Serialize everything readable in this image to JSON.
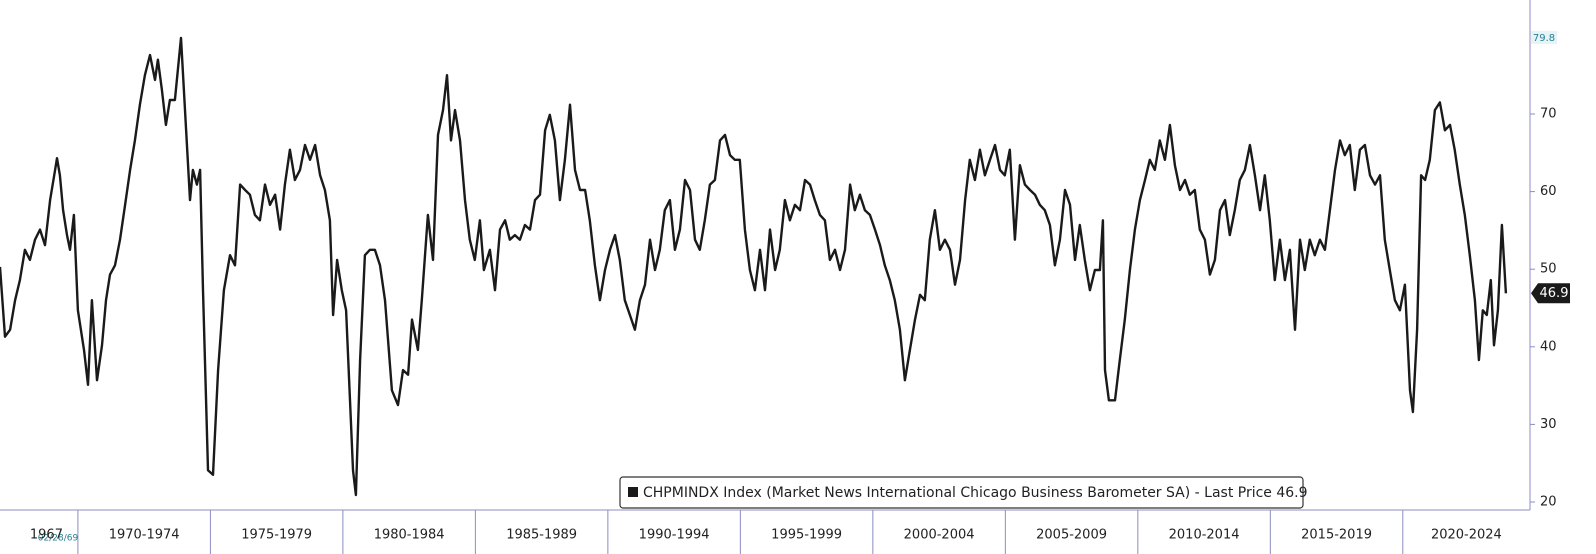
{
  "chart_data": {
    "type": "line",
    "legend_text": "CHPMINDX Index (Market News International Chicago Business Barometer SA) - Last Price 46.9",
    "cursor_date": "02/28/69",
    "series": [
      {
        "name": "CHPMINDX Index",
        "color": "#1a1a1a",
        "x": [
          1967.06,
          1967.25,
          1967.44,
          1967.63,
          1967.81,
          1968.0,
          1968.19,
          1968.38,
          1968.57,
          1968.76,
          1968.95,
          1969.14,
          1969.21,
          1969.32,
          1969.44,
          1969.59,
          1969.7,
          1969.85,
          1970.0,
          1970.23,
          1970.38,
          1970.53,
          1970.72,
          1970.91,
          1971.06,
          1971.21,
          1971.4,
          1971.59,
          1971.78,
          1971.97,
          1972.15,
          1972.34,
          1972.53,
          1972.72,
          1972.91,
          1973.02,
          1973.17,
          1973.32,
          1973.47,
          1973.66,
          1973.89,
          1974.04,
          1974.23,
          1974.34,
          1974.49,
          1974.61,
          1974.72,
          1974.91,
          1975.1,
          1975.29,
          1975.51,
          1975.74,
          1975.93,
          1976.12,
          1976.31,
          1976.49,
          1976.68,
          1976.87,
          1977.06,
          1977.25,
          1977.44,
          1977.63,
          1977.81,
          1978.0,
          1978.19,
          1978.38,
          1978.57,
          1978.76,
          1978.95,
          1979.14,
          1979.32,
          1979.51,
          1979.63,
          1979.78,
          1979.96,
          1980.12,
          1980.27,
          1980.38,
          1980.49,
          1980.65,
          1980.83,
          1981.02,
          1981.21,
          1981.4,
          1981.59,
          1981.85,
          1982.08,
          1982.27,
          1982.46,
          1982.61,
          1982.83,
          1982.98,
          1983.21,
          1983.4,
          1983.59,
          1983.78,
          1983.93,
          1984.08,
          1984.23,
          1984.42,
          1984.61,
          1984.79,
          1984.98,
          1985.17,
          1985.32,
          1985.55,
          1985.74,
          1985.93,
          1986.12,
          1986.3,
          1986.49,
          1986.68,
          1986.87,
          1987.06,
          1987.25,
          1987.44,
          1987.63,
          1987.81,
          1988.0,
          1988.19,
          1988.38,
          1988.57,
          1988.76,
          1988.95,
          1989.14,
          1989.32,
          1989.51,
          1989.7,
          1989.89,
          1990.08,
          1990.27,
          1990.45,
          1990.64,
          1990.83,
          1991.02,
          1991.21,
          1991.4,
          1991.59,
          1991.78,
          1991.96,
          1992.15,
          1992.34,
          1992.53,
          1992.72,
          1992.91,
          1993.1,
          1993.29,
          1993.47,
          1993.66,
          1993.85,
          1994.04,
          1994.23,
          1994.42,
          1994.61,
          1994.79,
          1994.98,
          1995.17,
          1995.36,
          1995.55,
          1995.74,
          1995.93,
          1996.12,
          1996.31,
          1996.49,
          1996.68,
          1996.87,
          1997.06,
          1997.25,
          1997.44,
          1997.63,
          1997.81,
          1998.0,
          1998.19,
          1998.38,
          1998.57,
          1998.76,
          1998.95,
          1999.14,
          1999.32,
          1999.51,
          1999.7,
          1999.89,
          2000.08,
          2000.27,
          2000.45,
          2000.64,
          2000.83,
          2001.02,
          2001.21,
          2001.4,
          2001.59,
          2001.78,
          2001.96,
          2002.15,
          2002.34,
          2002.53,
          2002.72,
          2002.91,
          2003.1,
          2003.29,
          2003.48,
          2003.66,
          2003.85,
          2004.04,
          2004.23,
          2004.42,
          2004.61,
          2004.8,
          2004.98,
          2005.17,
          2005.36,
          2005.55,
          2005.74,
          2005.93,
          2006.12,
          2006.3,
          2006.49,
          2006.68,
          2006.87,
          2007.06,
          2007.25,
          2007.44,
          2007.63,
          2007.81,
          2008.0,
          2008.19,
          2008.38,
          2008.57,
          2008.68,
          2008.76,
          2008.91,
          2009.14,
          2009.32,
          2009.51,
          2009.7,
          2009.89,
          2010.08,
          2010.27,
          2010.45,
          2010.64,
          2010.83,
          2011.02,
          2011.21,
          2011.4,
          2011.59,
          2011.78,
          2011.96,
          2012.15,
          2012.34,
          2012.53,
          2012.72,
          2012.91,
          2013.1,
          2013.29,
          2013.47,
          2013.66,
          2013.85,
          2014.04,
          2014.23,
          2014.42,
          2014.61,
          2014.79,
          2014.98,
          2015.17,
          2015.36,
          2015.55,
          2015.74,
          2015.93,
          2016.12,
          2016.3,
          2016.49,
          2016.68,
          2016.87,
          2017.06,
          2017.25,
          2017.44,
          2017.63,
          2017.81,
          2018.0,
          2018.19,
          2018.38,
          2018.57,
          2018.76,
          2018.95,
          2019.14,
          2019.32,
          2019.51,
          2019.7,
          2019.89,
          2020.08,
          2020.27,
          2020.38,
          2020.54,
          2020.69,
          2020.84,
          2021.02,
          2021.21,
          2021.4,
          2021.59,
          2021.78,
          2021.96,
          2022.15,
          2022.34,
          2022.53,
          2022.72,
          2022.87,
          2023.02,
          2023.17,
          2023.32,
          2023.44,
          2023.59,
          2023.74,
          2023.89
        ],
        "values": [
          50.3,
          41.3,
          42.2,
          46.0,
          48.6,
          52.5,
          51.2,
          53.8,
          55.1,
          53.1,
          58.9,
          62.8,
          64.3,
          62.1,
          57.6,
          54.4,
          52.5,
          57.0,
          44.7,
          39.6,
          35.1,
          46.0,
          35.7,
          40.2,
          46.0,
          49.3,
          50.5,
          53.8,
          58.3,
          62.8,
          66.6,
          71.2,
          75.0,
          77.6,
          74.4,
          77.0,
          73.1,
          68.6,
          71.8,
          71.8,
          79.8,
          70.5,
          58.9,
          62.8,
          60.9,
          62.8,
          47.3,
          24.1,
          23.5,
          37.0,
          47.3,
          51.8,
          50.5,
          60.9,
          60.2,
          59.6,
          57.0,
          56.3,
          60.9,
          58.3,
          59.6,
          55.1,
          60.9,
          65.4,
          61.5,
          62.8,
          66.0,
          64.1,
          66.0,
          62.1,
          60.2,
          56.3,
          44.1,
          51.2,
          47.3,
          44.7,
          33.1,
          24.1,
          20.9,
          38.3,
          51.8,
          52.5,
          52.5,
          50.5,
          46.0,
          34.4,
          32.5,
          37.0,
          36.4,
          43.5,
          39.6,
          46.0,
          57.0,
          51.2,
          67.3,
          70.5,
          75.0,
          66.6,
          70.5,
          66.6,
          58.9,
          53.8,
          51.2,
          56.3,
          49.9,
          52.5,
          47.3,
          55.1,
          56.3,
          53.8,
          54.4,
          53.8,
          55.7,
          55.1,
          58.9,
          59.6,
          67.9,
          69.9,
          66.6,
          58.9,
          64.1,
          71.2,
          62.8,
          60.2,
          60.2,
          56.3,
          50.5,
          46.0,
          49.9,
          52.5,
          54.4,
          51.2,
          46.0,
          44.1,
          42.2,
          46.0,
          48.0,
          53.8,
          49.9,
          52.5,
          57.6,
          58.9,
          52.5,
          55.1,
          61.5,
          60.2,
          53.8,
          52.5,
          56.3,
          60.9,
          61.5,
          66.6,
          67.3,
          64.7,
          64.1,
          64.1,
          55.1,
          49.9,
          47.3,
          52.5,
          47.3,
          55.1,
          49.9,
          52.5,
          58.9,
          56.3,
          58.3,
          57.6,
          61.5,
          60.9,
          58.9,
          57.0,
          56.3,
          51.2,
          52.5,
          49.9,
          52.5,
          60.9,
          57.6,
          59.6,
          57.6,
          57.0,
          55.1,
          53.1,
          50.5,
          48.6,
          46.0,
          42.2,
          35.7,
          39.6,
          43.5,
          46.7,
          46.0,
          53.8,
          57.6,
          52.5,
          53.8,
          52.5,
          48.0,
          51.2,
          58.9,
          64.1,
          61.5,
          65.4,
          62.1,
          64.1,
          66.0,
          62.8,
          62.1,
          65.4,
          53.8,
          63.4,
          60.9,
          60.2,
          59.6,
          58.3,
          57.6,
          55.7,
          50.5,
          53.8,
          60.2,
          58.3,
          51.2,
          55.7,
          51.2,
          47.3,
          49.9,
          49.9,
          56.3,
          37.0,
          33.1,
          33.1,
          38.3,
          43.5,
          49.9,
          55.1,
          58.9,
          61.5,
          64.1,
          62.8,
          66.6,
          64.1,
          68.6,
          63.4,
          60.2,
          61.5,
          59.6,
          60.2,
          55.1,
          53.8,
          49.3,
          51.2,
          57.6,
          58.9,
          54.4,
          57.6,
          61.5,
          62.8,
          66.0,
          62.1,
          57.6,
          62.1,
          56.3,
          48.6,
          53.8,
          48.6,
          52.5,
          42.2,
          53.8,
          49.9,
          53.8,
          51.8,
          53.8,
          52.5,
          57.6,
          62.8,
          66.6,
          64.7,
          66.0,
          60.2,
          65.4,
          66.0,
          62.1,
          60.9,
          62.1,
          53.8,
          49.9,
          46.0,
          44.7,
          48.0,
          34.4,
          31.6,
          42.2,
          62.1,
          61.5,
          64.1,
          70.5,
          71.5,
          67.9,
          68.6,
          65.4,
          60.9,
          57.0,
          51.8,
          46.0,
          38.3,
          44.7,
          44.1,
          48.6,
          40.2,
          44.7,
          55.7,
          46.9
        ]
      }
    ],
    "xlim": [
      1967.06,
      2024.8
    ],
    "ylim": [
      18.97,
      84.69
    ],
    "yticks": [
      20,
      30,
      40,
      50,
      60,
      70
    ],
    "x_periods": [
      {
        "label": "1967",
        "start": 1967.06,
        "end": 1970
      },
      {
        "label": "1970-1974",
        "start": 1970,
        "end": 1975
      },
      {
        "label": "1975-1979",
        "start": 1975,
        "end": 1980
      },
      {
        "label": "1980-1984",
        "start": 1980,
        "end": 1985
      },
      {
        "label": "1985-1989",
        "start": 1985,
        "end": 1990
      },
      {
        "label": "1990-1994",
        "start": 1990,
        "end": 1995
      },
      {
        "label": "1995-1999",
        "start": 1995,
        "end": 2000
      },
      {
        "label": "2000-2004",
        "start": 2000,
        "end": 2005
      },
      {
        "label": "2005-2009",
        "start": 2005,
        "end": 2010
      },
      {
        "label": "2010-2014",
        "start": 2010,
        "end": 2015
      },
      {
        "label": "2015-2019",
        "start": 2015,
        "end": 2020
      },
      {
        "label": "2020-2024",
        "start": 2020,
        "end": 2025
      }
    ],
    "grid": false
  }
}
